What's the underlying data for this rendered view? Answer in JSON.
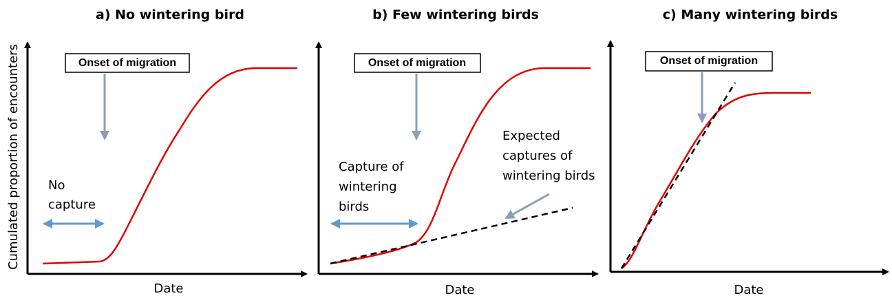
{
  "y_axis_label": "Cumulated proportion of encounters",
  "panels": [
    {
      "title": "a) No wintering bird",
      "box": "Onset of migration",
      "x_axis_label": "Date",
      "notes": [
        "No",
        "capture"
      ]
    },
    {
      "title": "b) Few wintering birds",
      "box": "Onset of migration",
      "x_axis_label": "Date",
      "notes": [
        "Capture of",
        "wintering",
        "birds"
      ],
      "expected": [
        "Expected",
        "captures of",
        "wintering birds"
      ]
    },
    {
      "title": "c) Many wintering birds",
      "box": "Onset of migration",
      "x_axis_label": "Date"
    }
  ]
}
